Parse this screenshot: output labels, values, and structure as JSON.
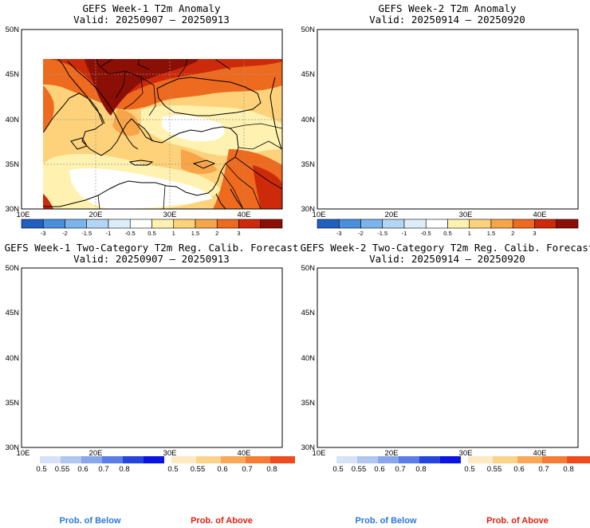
{
  "panels": [
    {
      "id": "w1-anom",
      "title": "GEFS Week-1 T2m Anomaly",
      "valid": "Valid: 20250907 – 20250913",
      "kind": "anomaly",
      "scale_labels": [
        "-3",
        "-2",
        "-1.5",
        "-1",
        "-0.5",
        "0.5",
        "1",
        "1.5",
        "2",
        "3"
      ]
    },
    {
      "id": "w2-anom",
      "title": "GEFS Week-2 T2m Anomaly",
      "valid": "Valid: 20250914 – 20250920",
      "kind": "anomaly",
      "scale_labels": [
        "-3",
        "-2",
        "-1.5",
        "-1",
        "-0.5",
        "0.5",
        "1",
        "1.5",
        "2",
        "3"
      ]
    },
    {
      "id": "w1-prob",
      "title": "GEFS Week-1 Two-Category T2m Reg. Calib. Forecast",
      "valid": "Valid: 20250907 – 20250913",
      "kind": "probability",
      "below_labels": [
        "0.5",
        "0.55",
        "0.6",
        "0.7",
        "0.8"
      ],
      "above_labels": [
        "0.5",
        "0.55",
        "0.6",
        "0.7",
        "0.8"
      ]
    },
    {
      "id": "w2-prob",
      "title": "GEFS Week-2 Two-Category T2m Reg. Calib. Forecast",
      "valid": "Valid: 20250914 – 20250920",
      "kind": "probability",
      "below_labels": [
        "0.5",
        "0.55",
        "0.6",
        "0.7",
        "0.8"
      ],
      "above_labels": [
        "0.5",
        "0.55",
        "0.6",
        "0.7",
        "0.8"
      ]
    }
  ],
  "axes": {
    "lat_labels": [
      "50N",
      "45N",
      "40N",
      "35N",
      "30N"
    ],
    "lon_labels": [
      "10E",
      "20E",
      "30E",
      "40E"
    ]
  },
  "footer": {
    "below_text": "Prob. of Below",
    "above_text": "Prob. of Above"
  },
  "colors": {
    "anomaly_scale": [
      "#1f5fbf",
      "#4a8fdc",
      "#7bb4ec",
      "#b3d6f5",
      "#ddeefa",
      "#ffffff",
      "#fff2b0",
      "#fdd27a",
      "#f8a54a",
      "#ee6a1f",
      "#cc2a0a",
      "#8c0f05"
    ],
    "below_scale": [
      "#d6e2f7",
      "#b1c6ef",
      "#8aa6ea",
      "#5a7ce6",
      "#2645dd",
      "#0b14e0"
    ],
    "above_scale": [
      "#fdeac2",
      "#fcd38a",
      "#f9a85a",
      "#f57c36",
      "#ee4b1e"
    ],
    "sea_light": "#d8f4f8",
    "footer_below": "#2a78d6",
    "footer_above": "#e02010"
  }
}
